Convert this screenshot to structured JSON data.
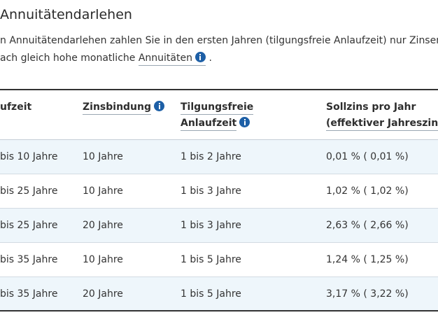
{
  "header": {
    "title": "Annuitätendarlehen",
    "intro_line1": "n Annuitätendarlehen zahlen Sie in den ersten Jahren (tilgungsfreie Anlaufzeit) nur Zinsen",
    "intro_line2_before": "ach gleich hohe monatliche",
    "intro_link": "Annuitäten",
    "intro_line2_after": "."
  },
  "table": {
    "columns": [
      "ufzeit",
      "Zinsbindung",
      [
        "Tilgungsfreie",
        "Anlaufzeit"
      ],
      [
        "Sollzins pro Jahr",
        "(effektiver Jahreszins"
      ]
    ],
    "rows": [
      [
        "bis 10 Jahre",
        "10 Jahre",
        "1 bis 2 Jahre",
        "0,01 % ( 0,01 %)"
      ],
      [
        "bis 25 Jahre",
        "10 Jahre",
        "1 bis 3 Jahre",
        "1,02 % ( 1,02 %)"
      ],
      [
        "bis 25 Jahre",
        "20 Jahre",
        "1 bis 3 Jahre",
        "2,63 % ( 2,66 %)"
      ],
      [
        "bis 35 Jahre",
        "10 Jahre",
        "1 bis 5 Jahre",
        "1,24 % ( 1,25 %)"
      ],
      [
        "bis 35 Jahre",
        "20 Jahre",
        "1 bis 5 Jahre",
        "3,17 % ( 3,22 %)"
      ]
    ]
  }
}
